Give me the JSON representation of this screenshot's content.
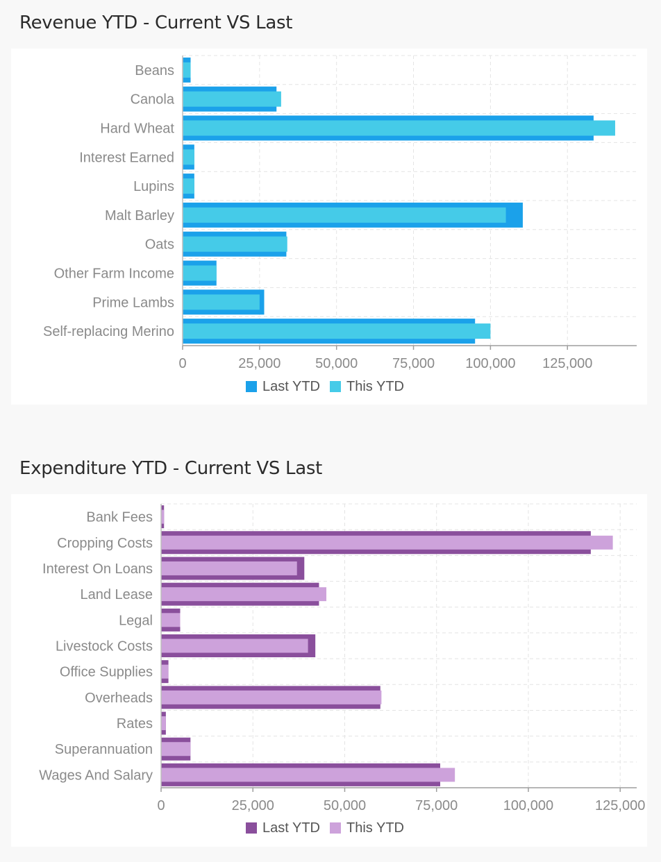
{
  "sections": [
    {
      "title": "Revenue YTD - Current VS Last",
      "colors": {
        "last": "#1ba1ea",
        "this": "#45cbe8"
      },
      "chart_data": {
        "type": "bar",
        "orientation": "horizontal",
        "categories": [
          "Beans",
          "Canola",
          "Hard Wheat",
          "Interest Earned",
          "Lupins",
          "Malt Barley",
          "Oats",
          "Other Farm Income",
          "Prime Lambs",
          "Self-replacing Merino"
        ],
        "series": [
          {
            "name": "Last YTD",
            "values": [
              2600,
              30500,
              133500,
              3800,
              3800,
              110500,
              33700,
              11000,
              26500,
              95000
            ]
          },
          {
            "name": "This YTD",
            "values": [
              2600,
              32000,
              140500,
              3800,
              3800,
              105000,
              34000,
              11000,
              25000,
              100000
            ]
          }
        ],
        "xlim": [
          0,
          147500
        ],
        "xticks": [
          0,
          25000,
          50000,
          75000,
          100000,
          125000
        ],
        "tick_labels": [
          "0",
          "25,000",
          "50,000",
          "75,000",
          "100,000",
          "125,000"
        ],
        "grid": true,
        "legend": "bottom"
      }
    },
    {
      "title": "Expenditure YTD - Current VS Last",
      "colors": {
        "last": "#8a4f9c",
        "this": "#cda2db"
      },
      "chart_data": {
        "type": "bar",
        "orientation": "horizontal",
        "categories": [
          "Bank Fees",
          "Cropping Costs",
          "Interest On Loans",
          "Land Lease",
          "Legal",
          "Livestock Costs",
          "Office Supplies",
          "Overheads",
          "Rates",
          "Superannuation",
          "Wages And Salary"
        ],
        "series": [
          {
            "name": "Last YTD",
            "values": [
              800,
              117000,
              39000,
              43000,
              5200,
              42000,
              2000,
              59700,
              1300,
              8000,
              76000
            ]
          },
          {
            "name": "This YTD",
            "values": [
              800,
              123000,
              37000,
              45000,
              5200,
              40000,
              2000,
              60000,
              1300,
              8000,
              80000
            ]
          }
        ],
        "xlim": [
          0,
          129500
        ],
        "xticks": [
          0,
          25000,
          50000,
          75000,
          100000,
          125000
        ],
        "tick_labels": [
          "0",
          "25,000",
          "50,000",
          "75,000",
          "100,000",
          "125,000"
        ],
        "grid": true,
        "legend": "bottom"
      }
    }
  ]
}
